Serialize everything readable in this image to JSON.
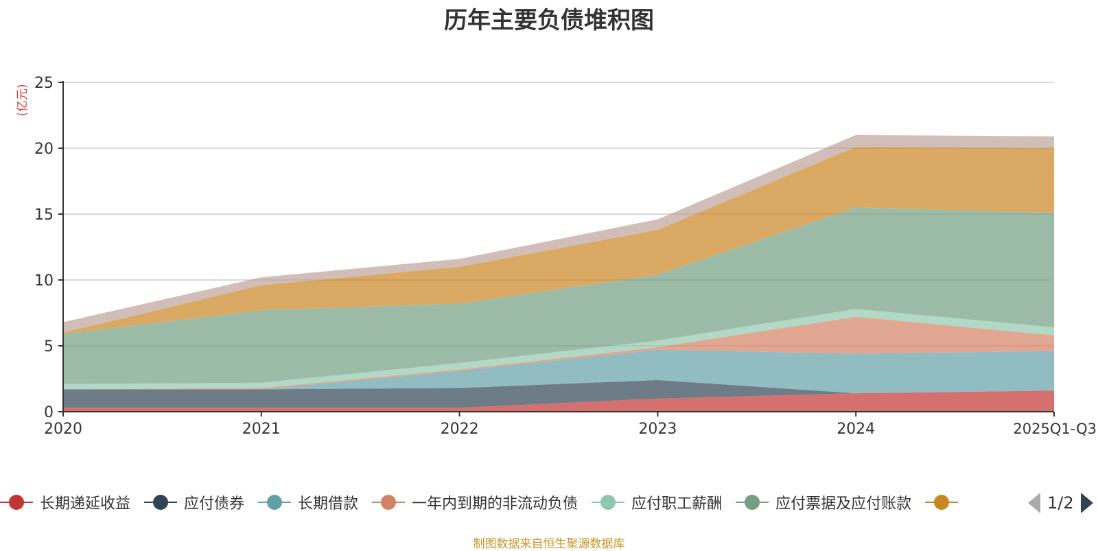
{
  "chart_data": {
    "type": "area",
    "stacked": true,
    "title": "历年主要负债堆积图",
    "ylabel": "(亿元)",
    "xlabel": "",
    "ylim": [
      0,
      25
    ],
    "yticks": [
      "0",
      "5",
      "10",
      "15",
      "20",
      "25"
    ],
    "categories": [
      "2020",
      "2021",
      "2022",
      "2023",
      "2024",
      "2025Q1-Q3"
    ],
    "grid": true,
    "series": [
      {
        "name": "长期递延收益",
        "color": "#c23531",
        "values": [
          0.3,
          0.3,
          0.3,
          1.0,
          1.4,
          1.6
        ]
      },
      {
        "name": "应付债券",
        "color": "#2f4554",
        "values": [
          1.4,
          1.4,
          1.5,
          1.4,
          0.0,
          0.0
        ]
      },
      {
        "name": "长期借款",
        "color": "#61a0a8",
        "values": [
          0.0,
          0.0,
          1.3,
          2.3,
          3.0,
          3.0
        ]
      },
      {
        "name": "一年内到期的非流动负债",
        "color": "#d48265",
        "values": [
          0.0,
          0.1,
          0.1,
          0.2,
          2.8,
          1.2
        ]
      },
      {
        "name": "应付职工薪酬",
        "color": "#91c7ae",
        "values": [
          0.4,
          0.4,
          0.5,
          0.5,
          0.6,
          0.6
        ]
      },
      {
        "name": "应付票据及应付账款",
        "color": "#749f83",
        "values": [
          3.8,
          5.5,
          4.5,
          5.0,
          7.7,
          8.7
        ]
      },
      {
        "name": "",
        "color": "#ca8622",
        "values": [
          0.1,
          1.9,
          2.8,
          3.4,
          4.6,
          4.9
        ]
      },
      {
        "name": "",
        "color": "#bda29a",
        "values": [
          0.8,
          0.6,
          0.6,
          0.8,
          0.9,
          0.9
        ]
      }
    ]
  },
  "legend": {
    "items": [
      {
        "label": "长期递延收益",
        "color": "#c23531"
      },
      {
        "label": "应付债券",
        "color": "#2f4554"
      },
      {
        "label": "长期借款",
        "color": "#61a0a8"
      },
      {
        "label": "一年内到期的非流动负债",
        "color": "#d48265"
      },
      {
        "label": "应付职工薪酬",
        "color": "#91c7ae"
      },
      {
        "label": "应付票据及应付账款",
        "color": "#749f83"
      },
      {
        "label": "",
        "color": "#ca8622"
      }
    ],
    "page": "1/2"
  },
  "source": "制图数据来自恒生聚源数据库"
}
